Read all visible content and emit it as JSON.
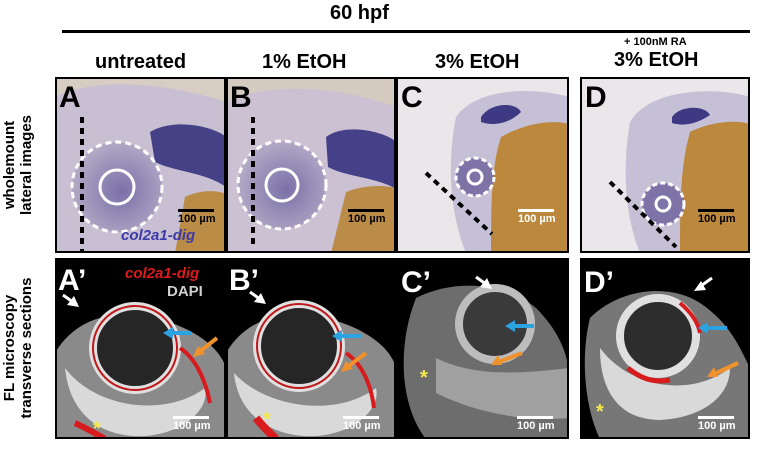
{
  "figure": {
    "title": "60 hpf",
    "columns": [
      {
        "label": "untreated"
      },
      {
        "label": "1% EtOH"
      },
      {
        "label": "3% EtOH"
      },
      {
        "label": "3% EtOH",
        "sublabel": "+ 100nM RA"
      }
    ],
    "row_labels": {
      "top_line1": "wholemount",
      "top_line2": "lateral images",
      "bottom_line1": "FL microscopy",
      "bottom_line2": "transverse sections"
    },
    "panel_letters": {
      "top": [
        "A",
        "B",
        "C",
        "D"
      ],
      "bottom": [
        "A’",
        "B’",
        "C’",
        "D’"
      ]
    },
    "scale_label": "100 µm",
    "probe_top": "col2a1-dig",
    "probe_bottom": "col2a1-dig",
    "stain_bottom": "DAPI",
    "colors": {
      "wholemount_background": "#d6cbbf",
      "ish_stain": "#3a3590",
      "yolk": "#b9822e",
      "probe_red": "#e0191b",
      "probe_blue": "#3b3aa8",
      "dapi_grey": "#cfcfcf",
      "arrow_white": "#ffffff",
      "arrow_blue": "#2aa3e0",
      "arrow_orange": "#f0922b",
      "asterisk_yellow": "#f5e94c"
    }
  }
}
